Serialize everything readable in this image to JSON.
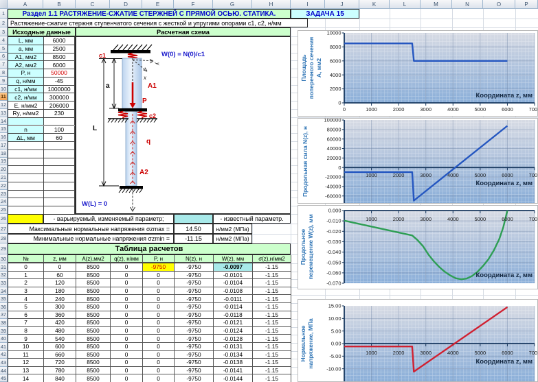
{
  "header": {
    "columns": [
      "A",
      "B",
      "C",
      "D",
      "E",
      "F",
      "G",
      "H",
      "I",
      "J",
      "K",
      "L",
      "M",
      "N",
      "O",
      "P"
    ],
    "rows_visible": 45,
    "selected_row": 11
  },
  "colors": {
    "pale_green": "#ccffcc",
    "cyan_light": "#ccffff",
    "cyan_known": "#a8e9e9",
    "yellow_varied": "#ffff00",
    "title_blue": "#0000cc",
    "red_accent": "#d40000",
    "chart_blue": "#2456c0",
    "chart_green": "#2e9e54",
    "chart_red": "#d02030"
  },
  "title": {
    "section": "Раздел 1.1 РАСТЯЖЕНИЕ-СЖАТИЕ СТЕРЖНЕЙ С ПРЯМОЙ ОСЬЮ. СТАТИКА.",
    "task": "ЗАДАЧА 15",
    "subtitle": "Растяжение-сжатие стержня ступенчатого сечения с жесткой и упругими опорами c1, c2, н/мм"
  },
  "input_table": {
    "header": "Исходные данные",
    "rows": [
      {
        "label": "L, мм",
        "value": "6000",
        "label_bg": "cyan",
        "value_color": "black"
      },
      {
        "label": "a, мм",
        "value": "2500",
        "label_bg": "cyan",
        "value_color": "black"
      },
      {
        "label": "A1, мм2",
        "value": "8500",
        "label_bg": "cyan",
        "value_color": "black"
      },
      {
        "label": "A2, мм2",
        "value": "6000",
        "label_bg": "cyan",
        "value_color": "black"
      },
      {
        "label": "P, н",
        "value": "50000",
        "label_bg": "cyan",
        "value_color": "red"
      },
      {
        "label": "q, н/мм",
        "value": "-45",
        "label_bg": "cyan",
        "value_color": "black"
      },
      {
        "label": "c1, н/мм",
        "value": "1000000",
        "label_bg": "cyan",
        "value_color": "black"
      },
      {
        "label": "c2, н/мм",
        "value": "300000",
        "label_bg": "cyan",
        "value_color": "black"
      },
      {
        "label": "E, н/мм2",
        "value": "206000",
        "label_bg": "white",
        "value_color": "black"
      },
      {
        "label": "Ry, н/мм2",
        "value": "230",
        "label_bg": "white",
        "value_color": "black"
      },
      {
        "label": "",
        "value": "",
        "label_bg": "cyan",
        "value_color": "black"
      },
      {
        "label": "n",
        "value": "100",
        "label_bg": "cyan",
        "value_color": "black"
      },
      {
        "label": "ΔL, мм",
        "value": "60",
        "label_bg": "cyan",
        "value_color": "black"
      }
    ],
    "empty_rows": 9
  },
  "scheme": {
    "header": "Расчетная схема",
    "labels": {
      "c1": "c1",
      "c2": "c2",
      "A1": "A1",
      "A2": "A2",
      "P": "P",
      "q": "q",
      "a": "a",
      "L": "L",
      "x": "x",
      "y": "y",
      "w_top": "W(0) = N(0)/c1",
      "w_bottom": "W(L) = 0"
    }
  },
  "legend": {
    "varied_text": "- варьируемый, изменяемый параметр;",
    "known_text": "- известный параметр."
  },
  "results": {
    "max": {
      "label": "Максимальные нормальные напряжения σzmax =",
      "value": "14.50",
      "unit": "н/мм2 (МПа)"
    },
    "min": {
      "label": "Минимальные нормальные напряжения σzmin =",
      "value": "-11.15",
      "unit": "н/мм2 (МПа)"
    }
  },
  "calc_table": {
    "title": "Таблица расчетов",
    "headers": [
      "№",
      "z, мм",
      "A(z),мм2",
      "q(z), н/мм",
      "P, н",
      "N(z), н",
      "W(z), мм",
      "σ(z),н/мм2"
    ],
    "rows": [
      [
        "0",
        "0",
        "8500",
        "0",
        "-9750",
        "-9750",
        "-0.0097",
        "-1.15"
      ],
      [
        "1",
        "60",
        "8500",
        "0",
        "0",
        "-9750",
        "-0.0101",
        "-1.15"
      ],
      [
        "2",
        "120",
        "8500",
        "0",
        "0",
        "-9750",
        "-0.0104",
        "-1.15"
      ],
      [
        "3",
        "180",
        "8500",
        "0",
        "0",
        "-9750",
        "-0.0108",
        "-1.15"
      ],
      [
        "4",
        "240",
        "8500",
        "0",
        "0",
        "-9750",
        "-0.0111",
        "-1.15"
      ],
      [
        "5",
        "300",
        "8500",
        "0",
        "0",
        "-9750",
        "-0.0114",
        "-1.15"
      ],
      [
        "6",
        "360",
        "8500",
        "0",
        "0",
        "-9750",
        "-0.0118",
        "-1.15"
      ],
      [
        "7",
        "420",
        "8500",
        "0",
        "0",
        "-9750",
        "-0.0121",
        "-1.15"
      ],
      [
        "8",
        "480",
        "8500",
        "0",
        "0",
        "-9750",
        "-0.0124",
        "-1.15"
      ],
      [
        "9",
        "540",
        "8500",
        "0",
        "0",
        "-9750",
        "-0.0128",
        "-1.15"
      ],
      [
        "10",
        "600",
        "8500",
        "0",
        "0",
        "-9750",
        "-0.0131",
        "-1.15"
      ],
      [
        "11",
        "660",
        "8500",
        "0",
        "0",
        "-9750",
        "-0.0134",
        "-1.15"
      ],
      [
        "12",
        "720",
        "8500",
        "0",
        "0",
        "-9750",
        "-0.0138",
        "-1.15"
      ],
      [
        "13",
        "780",
        "8500",
        "0",
        "0",
        "-9750",
        "-0.0141",
        "-1.15"
      ],
      [
        "14",
        "840",
        "8500",
        "0",
        "0",
        "-9750",
        "-0.0144",
        "-1.15"
      ]
    ]
  },
  "chart_data": [
    {
      "type": "line",
      "series_color_key": "chart_blue",
      "title_lines": [
        "Площадь",
        "поперечного сечения",
        "А, мм2"
      ],
      "xlabel": "Координата z, мм",
      "x_range": [
        0,
        7000
      ],
      "x_tick_step": 1000,
      "y_range": [
        0,
        10000
      ],
      "y_tick_step": 2000,
      "y_decimals": 0,
      "points": [
        [
          0,
          8500
        ],
        [
          2500,
          8500
        ],
        [
          2560,
          6000
        ],
        [
          6000,
          6000
        ]
      ]
    },
    {
      "type": "line",
      "series_color_key": "chart_blue",
      "title_lines": [
        "Продольная сила N(z), н"
      ],
      "xlabel": "Координата z, мм",
      "x_range": [
        0,
        7000
      ],
      "x_tick_step": 1000,
      "y_range": [
        -80000,
        100000
      ],
      "y_tick_step": 20000,
      "y_decimals": 0,
      "points": [
        [
          0,
          -9750
        ],
        [
          2500,
          -9750
        ],
        [
          2560,
          -69750
        ],
        [
          6000,
          87750
        ]
      ]
    },
    {
      "type": "line",
      "series_color_key": "chart_green",
      "title_lines": [
        "Продольное",
        "перемещение W(z), мм"
      ],
      "xlabel": "Координата z, мм",
      "x_range": [
        0,
        7000
      ],
      "x_tick_step": 1000,
      "y_range": [
        -0.07,
        0
      ],
      "y_tick_step": 0.01,
      "y_decimals": 3,
      "points": [
        [
          0,
          -0.0097
        ],
        [
          2500,
          -0.024
        ],
        [
          2700,
          -0.0285
        ],
        [
          2900,
          -0.0345
        ],
        [
          3100,
          -0.0425
        ],
        [
          3300,
          -0.049
        ],
        [
          3500,
          -0.0545
        ],
        [
          3700,
          -0.059
        ],
        [
          3900,
          -0.0625
        ],
        [
          4100,
          -0.0652
        ],
        [
          4300,
          -0.0662
        ],
        [
          4500,
          -0.0655
        ],
        [
          4700,
          -0.063
        ],
        [
          4900,
          -0.059
        ],
        [
          5100,
          -0.0535
        ],
        [
          5300,
          -0.047
        ],
        [
          5500,
          -0.0385
        ],
        [
          5700,
          -0.0275
        ],
        [
          5850,
          -0.016
        ],
        [
          6000,
          0
        ]
      ]
    },
    {
      "type": "line",
      "series_color_key": "chart_red",
      "title_lines": [
        "Нормальное",
        "напряжение, МПа"
      ],
      "xlabel": "Координата z, мм",
      "x_range": [
        0,
        7000
      ],
      "x_tick_step": 1000,
      "y_range": [
        -15,
        15
      ],
      "y_tick_step": 5,
      "y_decimals": 2,
      "points": [
        [
          0,
          -1.15
        ],
        [
          2500,
          -1.15
        ],
        [
          2560,
          -11.15
        ],
        [
          6000,
          14.5
        ]
      ]
    }
  ]
}
